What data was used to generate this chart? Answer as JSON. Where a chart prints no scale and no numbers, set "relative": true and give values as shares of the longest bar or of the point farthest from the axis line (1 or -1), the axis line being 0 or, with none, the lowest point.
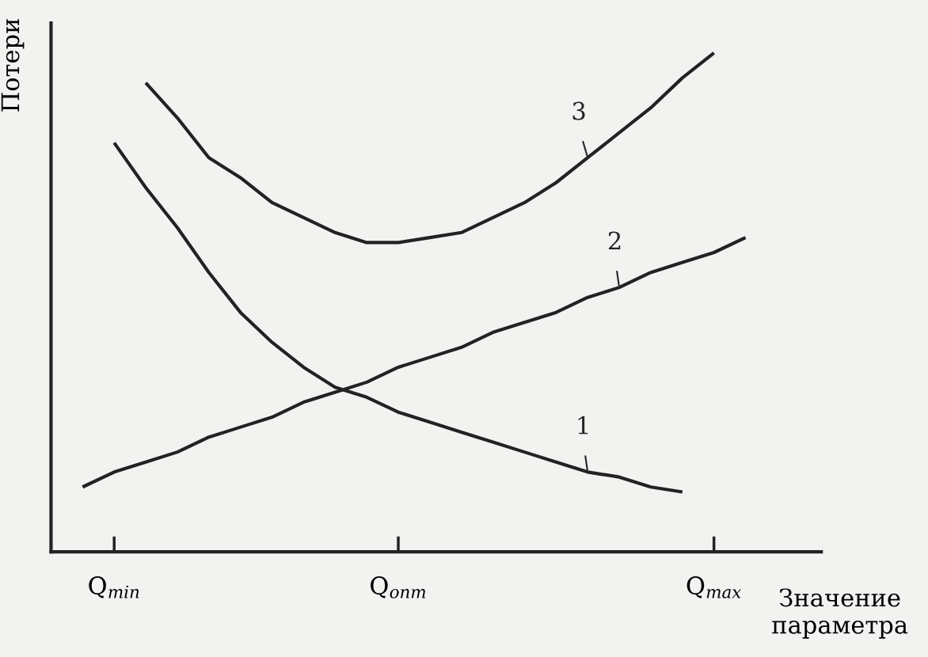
{
  "chart_data": {
    "type": "line",
    "relative": true,
    "xlabel": "Значение параметра",
    "ylabel": "Потери",
    "categories": [
      null,
      null,
      "Q$_{min}$",
      null,
      null,
      null,
      null,
      null,
      null,
      null,
      null,
      "Q$_{опт}$",
      null,
      null,
      null,
      null,
      null,
      null,
      null,
      null,
      null,
      "Q$_{max}$",
      null,
      null,
      null
    ],
    "series": [
      {
        "name": "1",
        "color": "#222222",
        "values": [
          null,
          null,
          0.82,
          0.73,
          0.65,
          0.56,
          0.48,
          0.42,
          0.37,
          0.33,
          0.31,
          0.28,
          0.26,
          0.24,
          0.22,
          0.2,
          0.18,
          0.16,
          0.15,
          0.13,
          0.12,
          null,
          null,
          null,
          null
        ]
      },
      {
        "name": "2",
        "color": "#222222",
        "values": [
          null,
          0.13,
          0.16,
          0.18,
          0.2,
          0.23,
          0.25,
          0.27,
          0.3,
          0.32,
          0.34,
          0.37,
          0.39,
          0.41,
          0.44,
          0.46,
          0.48,
          0.51,
          0.53,
          0.56,
          0.58,
          0.6,
          0.63,
          null,
          null
        ]
      },
      {
        "name": "3",
        "color": "#222222",
        "values": [
          null,
          null,
          null,
          0.94,
          0.87,
          0.79,
          0.75,
          0.7,
          0.67,
          0.64,
          0.62,
          0.62,
          0.63,
          0.64,
          0.67,
          0.7,
          0.74,
          0.79,
          0.84,
          0.89,
          0.95,
          1.0,
          null,
          null,
          null
        ]
      }
    ],
    "grid": false,
    "legend": false,
    "marker": "none",
    "line_style": "solid"
  }
}
